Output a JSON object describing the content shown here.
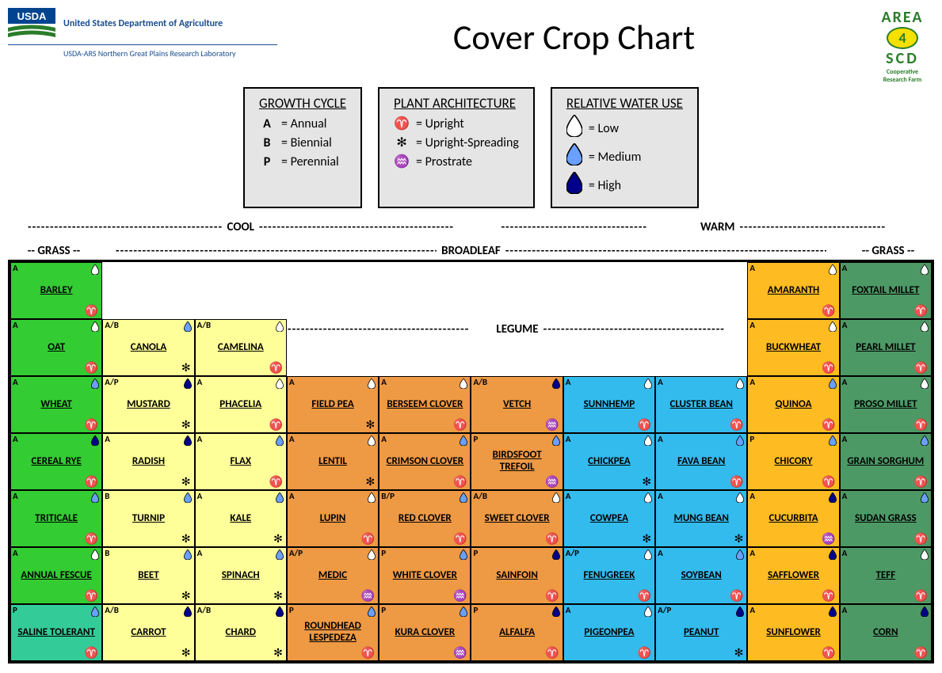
{
  "header": {
    "org1": "United States Department of Agriculture",
    "org2": "USDA-ARS Northern Great Plains Research Laboratory",
    "title": "Cover Crop Chart",
    "area4_line1": "AREA",
    "area4_num": "4",
    "area4_line2": "SCD",
    "area4_line3": "Cooperative",
    "area4_line4": "Research Farm"
  },
  "legend": {
    "growth_cycle": {
      "title": "GROWTH CYCLE",
      "items": [
        {
          "key": "A",
          "label": "= Annual"
        },
        {
          "key": "B",
          "label": "= Biennial"
        },
        {
          "key": "P",
          "label": "= Perennial"
        }
      ]
    },
    "architecture": {
      "title": "PLANT ARCHITECTURE",
      "items": [
        {
          "key": "aries",
          "label": "= Upright"
        },
        {
          "key": "asterisk",
          "label": "= Upright-Spreading"
        },
        {
          "key": "aquarius",
          "label": "= Prostrate"
        }
      ]
    },
    "water": {
      "title": "RELATIVE WATER USE",
      "items": [
        {
          "fill": "#ffffff",
          "label": "= Low"
        },
        {
          "fill": "#6aa0ff",
          "label": "= Medium"
        },
        {
          "fill": "#00008b",
          "label": "= High"
        }
      ]
    }
  },
  "sections": {
    "cool": "COOL",
    "warm": "WARM",
    "grass": "GRASS",
    "broadleaf": "BROADLEAF",
    "legume": "LEGUME"
  },
  "colors": {
    "bright_green": "#33cc33",
    "teal": "#33cc99",
    "pale_yellow": "#ffff99",
    "orange": "#ee9944",
    "sky_blue": "#33bbee",
    "amber": "#ffbb22",
    "dark_green": "#4d9966"
  },
  "water_colors": {
    "low": "#ffffff",
    "medium": "#6aa0ff",
    "high": "#00008b"
  },
  "arch_glyphs": {
    "upright": "♈",
    "spreading": "✻",
    "prostrate": "♒"
  },
  "grid": [
    [
      {
        "name": "BARLEY",
        "c": "bright_green",
        "gc": "A",
        "wu": "low",
        "arch": "upright"
      },
      null,
      null,
      null,
      null,
      null,
      null,
      null,
      {
        "name": "AMARANTH",
        "c": "amber",
        "gc": "A",
        "wu": "low",
        "arch": "upright"
      },
      {
        "name": "FOXTAIL MILLET",
        "c": "dark_green",
        "gc": "A",
        "wu": "low",
        "arch": "upright"
      }
    ],
    [
      {
        "name": "OAT",
        "c": "bright_green",
        "gc": "A",
        "wu": "low",
        "arch": "upright"
      },
      {
        "name": "CANOLA",
        "c": "pale_yellow",
        "gc": "A/B",
        "wu": "medium",
        "arch": "spreading"
      },
      {
        "name": "CAMELINA",
        "c": "pale_yellow",
        "gc": "A/B",
        "wu": "low",
        "arch": "upright"
      },
      null,
      null,
      null,
      null,
      null,
      {
        "name": "BUCKWHEAT",
        "c": "amber",
        "gc": "A",
        "wu": "low",
        "arch": "upright"
      },
      {
        "name": "PEARL MILLET",
        "c": "dark_green",
        "gc": "A",
        "wu": "low",
        "arch": "upright"
      }
    ],
    [
      {
        "name": "WHEAT",
        "c": "bright_green",
        "gc": "A",
        "wu": "medium",
        "arch": "upright"
      },
      {
        "name": "MUSTARD",
        "c": "pale_yellow",
        "gc": "A/P",
        "wu": "high",
        "arch": "spreading"
      },
      {
        "name": "PHACELIA",
        "c": "pale_yellow",
        "gc": "A",
        "wu": "low",
        "arch": "upright"
      },
      {
        "name": "FIELD PEA",
        "c": "orange",
        "gc": "A",
        "wu": "low",
        "arch": "spreading"
      },
      {
        "name": "BERSEEM CLOVER",
        "c": "orange",
        "gc": "A",
        "wu": "low",
        "arch": "upright"
      },
      {
        "name": "VETCH",
        "c": "orange",
        "gc": "A/B",
        "wu": "high",
        "arch": "prostrate"
      },
      {
        "name": "SUNNHEMP",
        "c": "sky_blue",
        "gc": "A",
        "wu": "low",
        "arch": "upright"
      },
      {
        "name": "CLUSTER BEAN",
        "c": "sky_blue",
        "gc": "A",
        "wu": "low",
        "arch": "upright"
      },
      {
        "name": "QUINOA",
        "c": "amber",
        "gc": "A",
        "wu": "medium",
        "arch": "upright"
      },
      {
        "name": "PROSO MILLET",
        "c": "dark_green",
        "gc": "A",
        "wu": "low",
        "arch": "upright"
      }
    ],
    [
      {
        "name": "CEREAL RYE",
        "c": "bright_green",
        "gc": "A",
        "wu": "high",
        "arch": "upright"
      },
      {
        "name": "RADISH",
        "c": "pale_yellow",
        "gc": "A",
        "wu": "high",
        "arch": "spreading"
      },
      {
        "name": "FLAX",
        "c": "pale_yellow",
        "gc": "A",
        "wu": "medium",
        "arch": "upright"
      },
      {
        "name": "LENTIL",
        "c": "orange",
        "gc": "A",
        "wu": "low",
        "arch": "spreading"
      },
      {
        "name": "CRIMSON CLOVER",
        "c": "orange",
        "gc": "A",
        "wu": "medium",
        "arch": "upright"
      },
      {
        "name": "BIRDSFOOT TREFOIL",
        "c": "orange",
        "gc": "P",
        "wu": "medium",
        "arch": "prostrate"
      },
      {
        "name": "CHICKPEA",
        "c": "sky_blue",
        "gc": "A",
        "wu": "low",
        "arch": "spreading"
      },
      {
        "name": "FAVA BEAN",
        "c": "sky_blue",
        "gc": "A",
        "wu": "medium",
        "arch": "upright"
      },
      {
        "name": "CHICORY",
        "c": "amber",
        "gc": "P",
        "wu": "medium",
        "arch": "upright"
      },
      {
        "name": "GRAIN SORGHUM",
        "c": "dark_green",
        "gc": "A",
        "wu": "medium",
        "arch": "upright"
      }
    ],
    [
      {
        "name": "TRITICALE",
        "c": "bright_green",
        "gc": "A",
        "wu": "medium",
        "arch": "upright"
      },
      {
        "name": "TURNIP",
        "c": "pale_yellow",
        "gc": "B",
        "wu": "medium",
        "arch": "spreading"
      },
      {
        "name": "KALE",
        "c": "pale_yellow",
        "gc": "A",
        "wu": "medium",
        "arch": "spreading"
      },
      {
        "name": "LUPIN",
        "c": "orange",
        "gc": "A",
        "wu": "low",
        "arch": "upright"
      },
      {
        "name": "RED CLOVER",
        "c": "orange",
        "gc": "B/P",
        "wu": "medium",
        "arch": "upright"
      },
      {
        "name": "SWEET CLOVER",
        "c": "orange",
        "gc": "A/B",
        "wu": "low",
        "arch": "upright"
      },
      {
        "name": "COWPEA",
        "c": "sky_blue",
        "gc": "A",
        "wu": "low",
        "arch": "spreading"
      },
      {
        "name": "MUNG BEAN",
        "c": "sky_blue",
        "gc": "A",
        "wu": "low",
        "arch": "spreading"
      },
      {
        "name": "CUCURBITA",
        "c": "amber",
        "gc": "A",
        "wu": "high",
        "arch": "prostrate"
      },
      {
        "name": "SUDAN GRASS",
        "c": "dark_green",
        "gc": "A",
        "wu": "medium",
        "arch": "upright"
      }
    ],
    [
      {
        "name": "ANNUAL FESCUE",
        "c": "bright_green",
        "gc": "A",
        "wu": "low",
        "arch": "upright"
      },
      {
        "name": "BEET",
        "c": "pale_yellow",
        "gc": "B",
        "wu": "medium",
        "arch": "spreading"
      },
      {
        "name": "SPINACH",
        "c": "pale_yellow",
        "gc": "A",
        "wu": "medium",
        "arch": "spreading"
      },
      {
        "name": "MEDIC",
        "c": "orange",
        "gc": "A/P",
        "wu": "low",
        "arch": "prostrate"
      },
      {
        "name": "WHITE CLOVER",
        "c": "orange",
        "gc": "P",
        "wu": "medium",
        "arch": "prostrate"
      },
      {
        "name": "SAINFOIN",
        "c": "orange",
        "gc": "P",
        "wu": "high",
        "arch": "upright"
      },
      {
        "name": "FENUGREEK",
        "c": "sky_blue",
        "gc": "A/P",
        "wu": "low",
        "arch": "upright"
      },
      {
        "name": "SOYBEAN",
        "c": "sky_blue",
        "gc": "A",
        "wu": "medium",
        "arch": "upright"
      },
      {
        "name": "SAFFLOWER",
        "c": "amber",
        "gc": "A",
        "wu": "high",
        "arch": "upright"
      },
      {
        "name": "TEFF",
        "c": "dark_green",
        "gc": "A",
        "wu": "low",
        "arch": "upright"
      }
    ],
    [
      {
        "name": "SALINE TOLERANT",
        "c": "teal",
        "gc": "P",
        "wu": "medium",
        "arch": "upright"
      },
      {
        "name": "CARROT",
        "c": "pale_yellow",
        "gc": "A/B",
        "wu": "high",
        "arch": "spreading"
      },
      {
        "name": "CHARD",
        "c": "pale_yellow",
        "gc": "A/B",
        "wu": "high",
        "arch": "spreading"
      },
      {
        "name": "ROUNDHEAD LESPEDEZA",
        "c": "orange",
        "gc": "P",
        "wu": "medium",
        "arch": "upright"
      },
      {
        "name": "KURA CLOVER",
        "c": "orange",
        "gc": "P",
        "wu": "medium",
        "arch": "prostrate"
      },
      {
        "name": "ALFALFA",
        "c": "orange",
        "gc": "P",
        "wu": "high",
        "arch": "upright"
      },
      {
        "name": "PIGEONPEA",
        "c": "sky_blue",
        "gc": "A",
        "wu": "low",
        "arch": "upright"
      },
      {
        "name": "PEANUT",
        "c": "sky_blue",
        "gc": "A/P",
        "wu": "high",
        "arch": "spreading"
      },
      {
        "name": "SUNFLOWER",
        "c": "amber",
        "gc": "A",
        "wu": "high",
        "arch": "upright"
      },
      {
        "name": "CORN",
        "c": "dark_green",
        "gc": "A",
        "wu": "high",
        "arch": "upright"
      }
    ]
  ]
}
